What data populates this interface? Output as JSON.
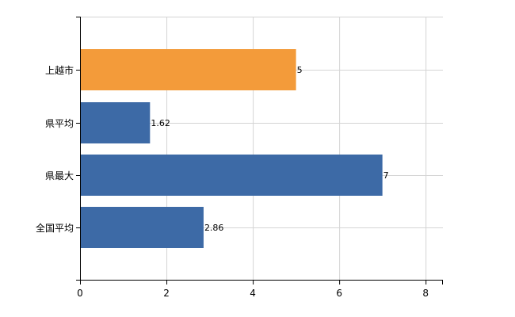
{
  "colors": {
    "highlight": "#f39b3a",
    "default": "#3d6aa6",
    "grid": "#d4d4d4",
    "axis": "#000000"
  },
  "chart_data": {
    "type": "bar",
    "orientation": "horizontal",
    "categories": [
      "上越市",
      "県平均",
      "県最大",
      "全国平均"
    ],
    "values": [
      5,
      1.62,
      7,
      2.86
    ],
    "value_labels": [
      "5",
      "1.62",
      "7",
      "2.86"
    ],
    "bar_colors": [
      "#f39b3a",
      "#3d6aa6",
      "#3d6aa6",
      "#3d6aa6"
    ],
    "xlim": [
      0,
      8.4
    ],
    "xticks": [
      0,
      2,
      4,
      6,
      8
    ],
    "xtick_labels": [
      "0",
      "2",
      "4",
      "6",
      "8"
    ],
    "title": "",
    "xlabel": "",
    "ylabel": "",
    "grid": true,
    "legend": "none"
  }
}
